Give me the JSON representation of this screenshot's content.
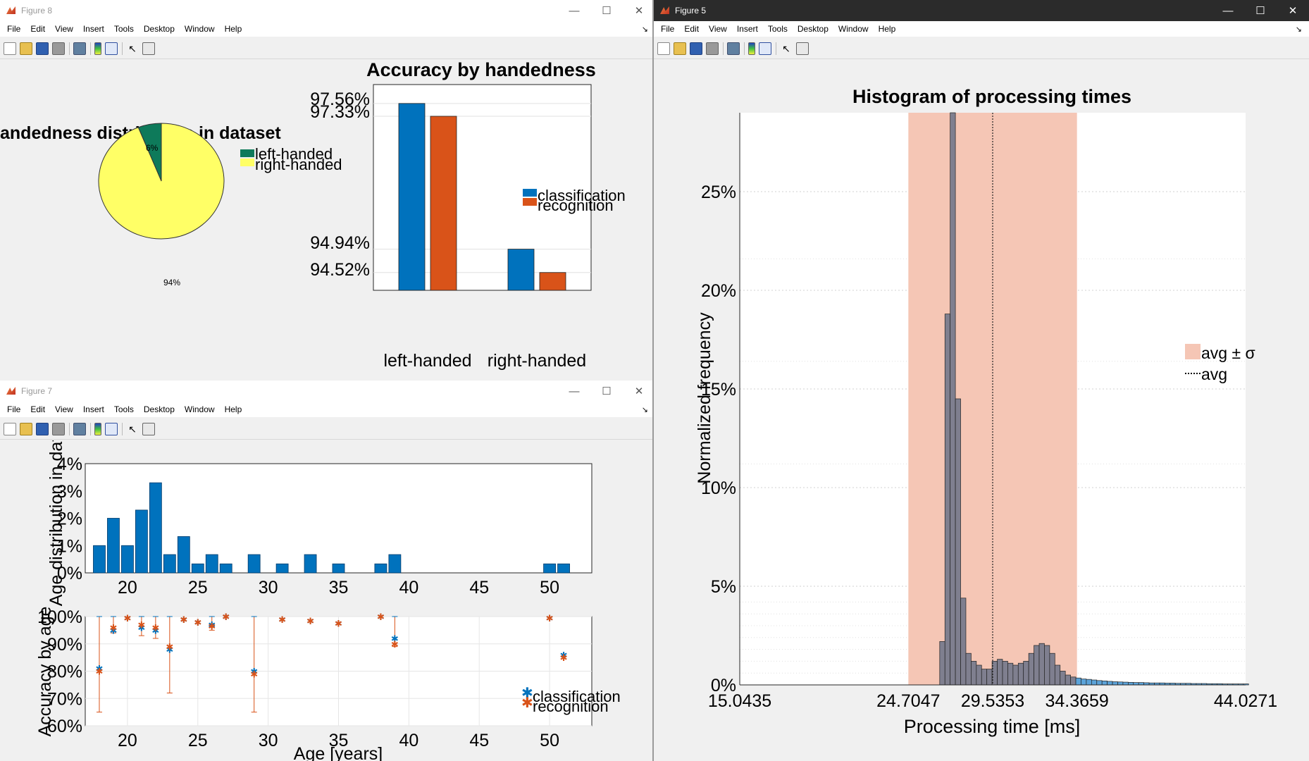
{
  "menu": [
    "File",
    "Edit",
    "View",
    "Insert",
    "Tools",
    "Desktop",
    "Window",
    "Help"
  ],
  "fig8": {
    "title": "Figure 8",
    "pie_title": "andedness distribution in dataset",
    "pie_labels": [
      "6%",
      "94%"
    ],
    "pie_legend": [
      "left-handed",
      "right-handed"
    ],
    "bar_title": "Accuracy by handedness",
    "bar_ticks": [
      "97.56%",
      "97.33%",
      "94.94%",
      "94.52%"
    ],
    "bar_cats": [
      "left-handed",
      "right-handed"
    ],
    "bar_legend": [
      "classification",
      "recognition"
    ]
  },
  "fig7": {
    "title": "Figure 7",
    "top_ylabel": "Age distribution in dat",
    "top_yticks": [
      "4%",
      "3%",
      "2%",
      "1%",
      "0%"
    ],
    "xticks": [
      "20",
      "25",
      "30",
      "35",
      "40",
      "45",
      "50"
    ],
    "bot_ylabel": "Accuracy by age",
    "bot_yticks": [
      "100%",
      "90%",
      "80%",
      "70%",
      "60%"
    ],
    "bot_xlabel": "Age [years]",
    "bot_legend": [
      "classification",
      "recognition"
    ]
  },
  "fig5": {
    "title": "Figure 5",
    "hist_title": "Histogram of processing times",
    "ylabel": "Normalized frequency",
    "yticks": [
      "0%",
      "5%",
      "10%",
      "15%",
      "20%",
      "25%"
    ],
    "xticks": [
      "15.0435",
      "24.7047",
      "29.5353",
      "34.3659",
      "44.0271"
    ],
    "xlabel": "Processing time [ms]",
    "legend_band": "avg ± σ",
    "legend_line": "avg"
  },
  "chart_data": [
    {
      "type": "pie",
      "title": "andedness distribution in dataset",
      "labels": [
        "left-handed",
        "right-handed"
      ],
      "values": [
        6,
        94
      ],
      "colors": [
        "#0e7a5a",
        "#ffff66"
      ]
    },
    {
      "type": "bar",
      "title": "Accuracy by handedness",
      "categories": [
        "left-handed",
        "right-handed"
      ],
      "series": [
        {
          "name": "classification",
          "values": [
            97.56,
            94.94
          ]
        },
        {
          "name": "recognition",
          "values": [
            97.33,
            94.52
          ]
        }
      ],
      "colors": [
        "#0072bd",
        "#d95319"
      ],
      "ylim": [
        94.2,
        97.9
      ]
    },
    {
      "type": "bar",
      "ylabel": "Age distribution in dat",
      "ages": [
        18,
        19,
        20,
        21,
        22,
        23,
        24,
        25,
        26,
        27,
        29,
        31,
        33,
        35,
        38,
        39,
        50,
        51
      ],
      "values": [
        1,
        2,
        1,
        2.3,
        3.3,
        0.67,
        1.33,
        0.33,
        0.67,
        0.33,
        0.67,
        0.33,
        0.67,
        0.33,
        0.33,
        0.67,
        0.33,
        0.33
      ],
      "xlim": [
        17,
        53
      ],
      "ylim": [
        0,
        4
      ]
    },
    {
      "type": "scatter",
      "ylabel": "Accuracy by age",
      "xlabel": "Age [years]",
      "x": [
        18,
        19,
        20,
        21,
        22,
        23,
        24,
        25,
        26,
        27,
        29,
        31,
        33,
        35,
        38,
        39,
        50,
        51
      ],
      "series": [
        {
          "name": "classification",
          "values": [
            81,
            95,
            99.5,
            96,
            95,
            88,
            99,
            98,
            97,
            100,
            80,
            99,
            98.5,
            97.5,
            100,
            92,
            99.5,
            86
          ]
        },
        {
          "name": "recognition",
          "values": [
            80,
            96,
            99.5,
            97,
            96,
            89,
            99,
            98,
            96.5,
            100,
            79,
            99,
            98.5,
            97.5,
            100,
            90,
            99.5,
            85
          ]
        }
      ],
      "xlim": [
        17,
        53
      ],
      "ylim": [
        60,
        100
      ]
    },
    {
      "type": "bar",
      "title": "Histogram of processing times",
      "xlabel": "Processing time [ms]",
      "ylabel": "Normalized frequency",
      "xlim": [
        15.0435,
        44.0271
      ],
      "ylim": [
        0,
        29
      ],
      "avg": 29.5353,
      "band": [
        24.7047,
        34.3659
      ],
      "bin_start": 26.5,
      "bin_width": 0.3,
      "values": [
        2.2,
        18.8,
        29,
        14.5,
        4.4,
        1.6,
        1.2,
        1.0,
        0.8,
        0.8,
        1.2,
        1.3,
        1.2,
        1.1,
        1.0,
        1.1,
        1.2,
        1.6,
        2.0,
        2.1,
        2.0,
        1.6,
        1.0,
        0.7,
        0.5,
        0.4,
        0.35,
        0.3,
        0.28,
        0.25,
        0.22,
        0.2,
        0.18,
        0.16,
        0.15,
        0.14,
        0.13,
        0.12,
        0.12,
        0.11,
        0.1,
        0.1,
        0.1,
        0.09,
        0.09,
        0.08,
        0.08,
        0.08,
        0.07,
        0.07,
        0.07,
        0.06,
        0.06,
        0.06,
        0.05,
        0.05,
        0.05,
        0.05,
        0.05
      ]
    }
  ]
}
